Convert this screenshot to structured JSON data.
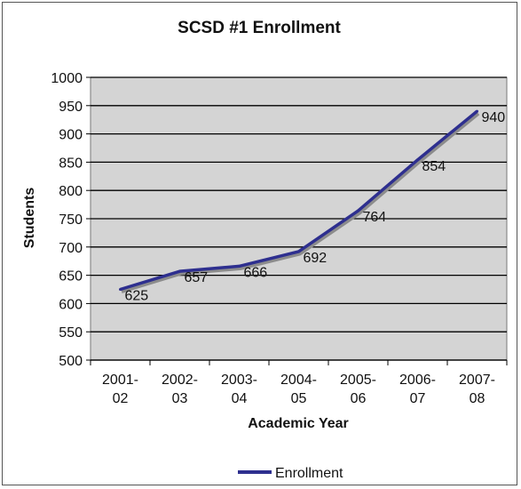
{
  "chart_data": {
    "type": "line",
    "title": "SCSD #1 Enrollment",
    "xlabel": "Academic Year",
    "ylabel": "Students",
    "categories": [
      [
        "2001-",
        "02"
      ],
      [
        "2002-",
        "03"
      ],
      [
        "2003-",
        "04"
      ],
      [
        "2004-",
        "05"
      ],
      [
        "2005-",
        "06"
      ],
      [
        "2006-",
        "07"
      ],
      [
        "2007-",
        "08"
      ]
    ],
    "series": [
      {
        "name": "Enrollment",
        "values": [
          625,
          657,
          666,
          692,
          764,
          854,
          940
        ],
        "color": "#2e2f8f"
      }
    ],
    "ylim": [
      500,
      1000
    ],
    "yticks": [
      500,
      550,
      600,
      650,
      700,
      750,
      800,
      850,
      900,
      950,
      1000
    ],
    "grid": true,
    "plot_background": "#d4d4d4",
    "legend_position": "bottom"
  }
}
